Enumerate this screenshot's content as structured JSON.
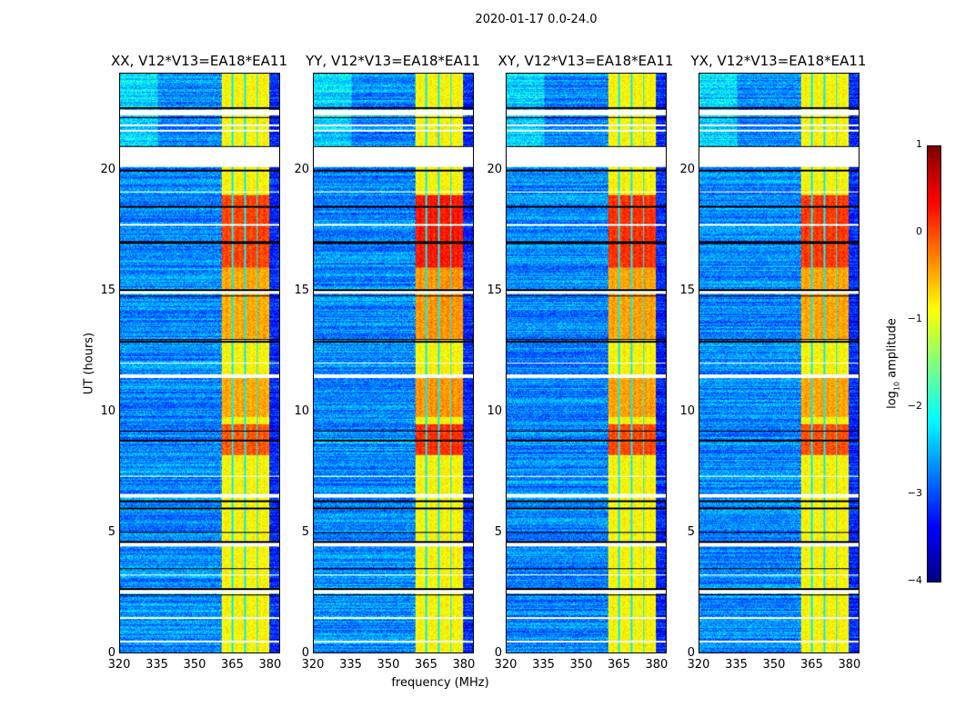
{
  "chart_data": {
    "type": "heatmap",
    "title": "2020-01-17 0.0-24.0",
    "xlabel": "frequency (MHz)",
    "ylabel": "UT (hours)",
    "xlim": [
      320,
      384
    ],
    "ylim": [
      0,
      24
    ],
    "xticks": [
      "320",
      "335",
      "350",
      "365",
      "380"
    ],
    "yticks": [
      "0",
      "5",
      "10",
      "15",
      "20"
    ],
    "panels": [
      {
        "title": "XX, V12*V13=EA18*EA11",
        "rfi_boost": 0.0
      },
      {
        "title": "YY, V12*V13=EA18*EA11",
        "rfi_boost": 0.25
      },
      {
        "title": "XY, V12*V13=EA18*EA11",
        "rfi_boost": 0.1
      },
      {
        "title": "YX, V12*V13=EA18*EA11",
        "rfi_boost": 0.05
      }
    ],
    "colormap": "jet",
    "background_level": -2.7,
    "rfi_subbands": [
      [
        360.5,
        364.7
      ],
      [
        365.3,
        369.7
      ],
      [
        370.3,
        374.7
      ],
      [
        375.3,
        380
      ]
    ],
    "rfi_level": -0.9,
    "strong_rfi_hours": [
      [
        16.0,
        19.0,
        0.9
      ],
      [
        8.2,
        9.5,
        0.8
      ],
      [
        9.8,
        11.5,
        0.4
      ],
      [
        13.0,
        16.0,
        0.4
      ]
    ],
    "flagged_hours": [
      [
        20.15,
        21.0
      ],
      [
        22.3,
        22.5
      ],
      [
        2.45,
        2.6
      ],
      [
        4.4,
        4.55
      ],
      [
        6.45,
        6.6
      ],
      [
        11.4,
        11.55
      ],
      [
        14.9,
        15.0
      ],
      [
        17.7,
        17.8
      ],
      [
        1.4,
        1.5
      ],
      [
        0.45,
        0.5
      ],
      [
        12.0,
        12.05
      ],
      [
        3.2,
        3.25
      ],
      [
        7.3,
        7.35
      ],
      [
        19.1,
        19.15
      ],
      [
        21.6,
        21.7
      ],
      [
        21.85,
        21.9
      ]
    ],
    "black_lines_hours": [
      22.6,
      22.2,
      21.0,
      20.0,
      17.0,
      17.05,
      18.5,
      15.05,
      14.8,
      13.0,
      12.9,
      9.2,
      8.8,
      6.3,
      6.0,
      5.0,
      3.5,
      2.65,
      2.4,
      4.6
    ],
    "colorbar": {
      "label_main": "log",
      "label_sub": "10",
      "label_rest": " amplitude",
      "range": [
        -4,
        1
      ],
      "ticks": [
        "1",
        "0",
        "−1",
        "−2",
        "−3",
        "−4"
      ]
    }
  }
}
